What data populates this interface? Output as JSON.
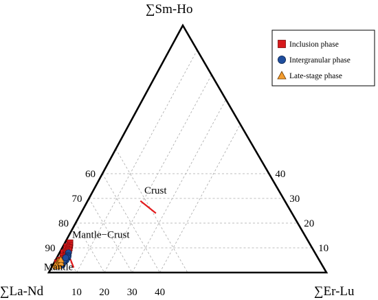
{
  "chart_data": {
    "type": "scatter",
    "subtype": "ternary",
    "vertices": {
      "top": "∑Sm-Ho",
      "left": "∑La-Nd",
      "right": "∑Er-Lu"
    },
    "ticks": {
      "left_edge": [
        {
          "label": "60",
          "left_value": 60
        },
        {
          "label": "70",
          "left_value": 70
        },
        {
          "label": "80",
          "left_value": 80
        },
        {
          "label": "90",
          "left_value": 90
        }
      ],
      "right_edge": [
        {
          "label": "40",
          "top_value": 40
        },
        {
          "label": "30",
          "top_value": 30
        },
        {
          "label": "20",
          "top_value": 20
        },
        {
          "label": "10",
          "top_value": 10
        }
      ],
      "bottom_edge": [
        {
          "label": "10",
          "right_value": 10
        },
        {
          "label": "20",
          "right_value": 20
        },
        {
          "label": "30",
          "right_value": 30
        },
        {
          "label": "40",
          "right_value": 40
        }
      ]
    },
    "regions": [
      {
        "label": "Crust",
        "anchor": {
          "top": 32,
          "right": 23
        }
      },
      {
        "label": "Mantle−Crust",
        "anchor": {
          "top": 14,
          "right": 12
        }
      },
      {
        "label": "Mantle",
        "anchor": {
          "top": 1,
          "right": 3
        }
      }
    ],
    "boundaries": [
      {
        "from": {
          "top": 2,
          "right": 8
        },
        "to": {
          "top": 8,
          "right": 3
        }
      },
      {
        "from": {
          "top": 29,
          "right": 19
        },
        "to": {
          "top": 24,
          "right": 27
        }
      }
    ],
    "grid": {
      "visible": true,
      "step": 10,
      "max_top": 40,
      "max_right": 40,
      "style": "dashed"
    },
    "legend": {
      "position": "top-right"
    },
    "series": [
      {
        "name": "Inclusion phase",
        "marker": "square",
        "color": "#d7191c",
        "points": [
          {
            "top": 12,
            "right": 1.8
          },
          {
            "top": 11,
            "right": 2.2
          },
          {
            "top": 10.5,
            "right": 1.5
          },
          {
            "top": 10,
            "right": 2.5
          },
          {
            "top": 9.5,
            "right": 1.8
          },
          {
            "top": 9,
            "right": 2.8
          },
          {
            "top": 8.5,
            "right": 2.2
          },
          {
            "top": 8,
            "right": 1.5
          },
          {
            "top": 7.5,
            "right": 2.6
          },
          {
            "top": 7,
            "right": 3
          },
          {
            "top": 6.5,
            "right": 2
          },
          {
            "top": 6,
            "right": 3.2
          },
          {
            "top": 5.5,
            "right": 2.4
          },
          {
            "top": 5,
            "right": 1.6
          },
          {
            "top": 4.5,
            "right": 2.8
          },
          {
            "top": 4,
            "right": 1.2
          }
        ]
      },
      {
        "name": "Intergranular phase",
        "marker": "circle",
        "color": "#1f4e9e",
        "points": [
          {
            "top": 8,
            "right": 3.2
          },
          {
            "top": 7,
            "right": 3.6
          },
          {
            "top": 6.5,
            "right": 3.8
          },
          {
            "top": 6,
            "right": 3.9
          },
          {
            "top": 5.5,
            "right": 3.7
          },
          {
            "top": 5,
            "right": 3.8
          },
          {
            "top": 4.5,
            "right": 3.5
          },
          {
            "top": 4,
            "right": 3.3
          },
          {
            "top": 3.5,
            "right": 3.0
          },
          {
            "top": 3,
            "right": 3.4
          },
          {
            "top": 5,
            "right": 3.0
          },
          {
            "top": 6,
            "right": 3.2
          }
        ]
      },
      {
        "name": "Late-stage phase",
        "marker": "triangle",
        "color": "#f39c2e",
        "points": [
          {
            "top": 4.5,
            "right": 1.2
          },
          {
            "top": 4,
            "right": 2.0
          },
          {
            "top": 3.5,
            "right": 1.5
          },
          {
            "top": 3,
            "right": 1.0
          },
          {
            "top": 2.8,
            "right": 2.2
          },
          {
            "top": 2.5,
            "right": 1.6
          },
          {
            "top": 3.8,
            "right": 2.6
          },
          {
            "top": 5.2,
            "right": 1.8
          }
        ]
      }
    ]
  }
}
